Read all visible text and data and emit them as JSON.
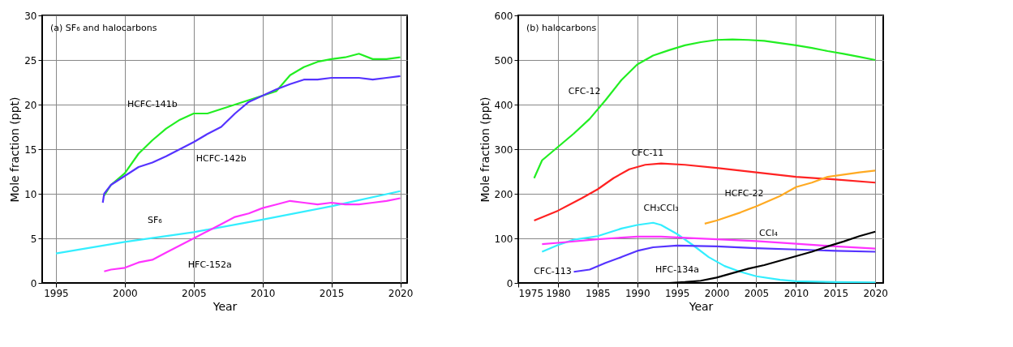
{
  "chart_data": [
    {
      "type": "line",
      "title": "(a) SF₆ and halocarbons",
      "xlabel": "Year",
      "ylabel": "Mole fraction (ppt)",
      "xlim": [
        1994,
        2020.5
      ],
      "xticks": [
        1995,
        2000,
        2005,
        2010,
        2015,
        2020
      ],
      "ylim": [
        0,
        30
      ],
      "yticks": [
        0,
        5,
        10,
        15,
        20,
        25,
        30
      ],
      "grid": true,
      "line_style": "solid",
      "series": [
        {
          "name": "HCFC-141b",
          "color": "#22ee22",
          "x": [
            1998.5,
            1999,
            2000,
            2001,
            2002,
            2003,
            2004,
            2005,
            2006,
            2007,
            2008,
            2009,
            2010,
            2011,
            2012,
            2013,
            2014,
            2015,
            2016,
            2017,
            2018,
            2019,
            2020
          ],
          "values": [
            9.8,
            11,
            12.3,
            14.5,
            16,
            17.3,
            18.3,
            19,
            19,
            19.5,
            20,
            20.5,
            21,
            21.5,
            23.3,
            24.2,
            24.8,
            25.1,
            25.3,
            25.7,
            25.1,
            25.1,
            25.3
          ]
        },
        {
          "name": "HCFC-142b",
          "color": "#5533ff",
          "x": [
            1998.4,
            1998.5,
            1999,
            2000,
            2001,
            2002,
            2003,
            2004,
            2005,
            2006,
            2007,
            2008,
            2009,
            2010,
            2011,
            2012,
            2013,
            2014,
            2015,
            2016,
            2017,
            2018,
            2019,
            2020
          ],
          "values": [
            9.0,
            10,
            11,
            12,
            13,
            13.5,
            14.2,
            15,
            15.8,
            16.7,
            17.5,
            19,
            20.3,
            21,
            21.7,
            22.3,
            22.8,
            22.8,
            23,
            23,
            23,
            22.8,
            23,
            23.2
          ]
        },
        {
          "name": "SF₆",
          "color": "#33eeff",
          "x": [
            1995,
            2000,
            2005,
            2010,
            2015,
            2020
          ],
          "values": [
            3.3,
            4.6,
            5.7,
            7.1,
            8.6,
            10.3
          ]
        },
        {
          "name": "HFC-152a",
          "color": "#ff33ff",
          "x": [
            1998.5,
            1999,
            2000,
            2001,
            2002,
            2003,
            2004,
            2005,
            2006,
            2007,
            2008,
            2009,
            2010,
            2011,
            2012,
            2013,
            2014,
            2015,
            2016,
            2017,
            2018,
            2019,
            2020
          ],
          "values": [
            1.3,
            1.5,
            1.7,
            2.3,
            2.6,
            3.4,
            4.2,
            5.0,
            5.8,
            6.6,
            7.4,
            7.8,
            8.4,
            8.8,
            9.2,
            9.0,
            8.8,
            9.0,
            8.8,
            8.8,
            9.0,
            9.2,
            9.5
          ]
        }
      ]
    },
    {
      "type": "line",
      "title": "(b) halocarbons",
      "xlabel": "Year",
      "ylabel": "Mole fraction (ppt)",
      "xlim": [
        1975,
        2021
      ],
      "xticks": [
        1975,
        1980,
        1985,
        1990,
        1995,
        2000,
        2005,
        2010,
        2015,
        2020
      ],
      "ylim": [
        0,
        600
      ],
      "yticks": [
        0,
        100,
        200,
        300,
        400,
        500,
        600
      ],
      "grid": true,
      "line_style": "solid",
      "series": [
        {
          "name": "CFC-12",
          "color": "#22ee22",
          "x": [
            1977,
            1978,
            1980,
            1982,
            1984,
            1986,
            1988,
            1990,
            1992,
            1994,
            1996,
            1998,
            2000,
            2002,
            2004,
            2006,
            2008,
            2010,
            2012,
            2014,
            2016,
            2018,
            2020
          ],
          "values": [
            235,
            275,
            305,
            335,
            368,
            410,
            455,
            490,
            510,
            522,
            533,
            540,
            545,
            546,
            545,
            543,
            538,
            533,
            527,
            520,
            514,
            507,
            500
          ]
        },
        {
          "name": "CFC-11",
          "color": "#ff2222",
          "x": [
            1977,
            1980,
            1983,
            1985,
            1987,
            1989,
            1991,
            1993,
            1996,
            2000,
            2005,
            2010,
            2015,
            2020
          ],
          "values": [
            140,
            162,
            190,
            210,
            235,
            255,
            265,
            268,
            265,
            258,
            248,
            238,
            232,
            225
          ]
        },
        {
          "name": "HCFC-22",
          "color": "#ffaa22",
          "x": [
            1998.5,
            2000,
            2003,
            2005,
            2008,
            2010,
            2012,
            2014,
            2016,
            2018,
            2020
          ],
          "values": [
            133,
            140,
            158,
            172,
            195,
            215,
            225,
            238,
            243,
            248,
            252
          ]
        },
        {
          "name": "CH₃CCl₃",
          "color": "#33eeff",
          "x": [
            1978,
            1980,
            1982,
            1985,
            1988,
            1990,
            1992,
            1993,
            1995,
            1997,
            1999,
            2001,
            2003,
            2005,
            2008,
            2010,
            2015,
            2020
          ],
          "values": [
            70,
            85,
            97,
            105,
            122,
            130,
            135,
            130,
            110,
            85,
            58,
            38,
            25,
            15,
            7,
            4,
            2,
            1
          ]
        },
        {
          "name": "CCl₄",
          "color": "#ff33ff",
          "x": [
            1978,
            1980,
            1985,
            1990,
            1993,
            1995,
            2000,
            2005,
            2010,
            2015,
            2020
          ],
          "values": [
            87,
            90,
            98,
            104,
            104,
            102,
            98,
            94,
            88,
            82,
            77
          ]
        },
        {
          "name": "CFC-113",
          "color": "#5533ff",
          "x": [
            1982,
            1984,
            1986,
            1988,
            1990,
            1992,
            1995,
            2000,
            2005,
            2010,
            2015,
            2020
          ],
          "values": [
            25,
            30,
            45,
            58,
            72,
            80,
            84,
            82,
            78,
            75,
            72,
            70
          ]
        },
        {
          "name": "HFC-134a",
          "color": "#000000",
          "x": [
            1994,
            1996,
            1998,
            2000,
            2002,
            2004,
            2006,
            2008,
            2010,
            2012,
            2014,
            2016,
            2018,
            2020
          ],
          "values": [
            0,
            2,
            5,
            12,
            22,
            32,
            40,
            50,
            60,
            70,
            82,
            93,
            105,
            115
          ]
        }
      ]
    }
  ]
}
